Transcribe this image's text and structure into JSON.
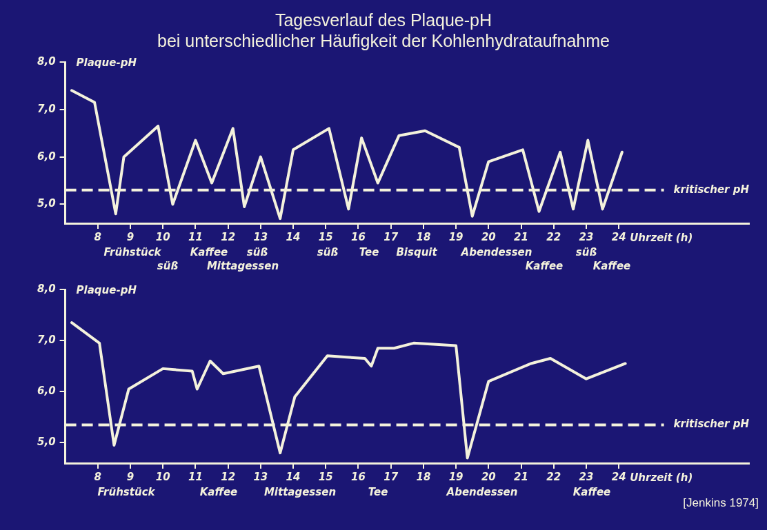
{
  "chart_data": [
    {
      "type": "line",
      "title": "Tagesverlauf des Plaque-pH",
      "subtitle": "bei unterschiedlicher Häufigkeit der Kohlenhydrataufnahme",
      "ylabel": "Plaque-pH",
      "xlabel": "Uhrzeit (h)",
      "x": [
        7.2,
        7.9,
        8.55,
        8.8,
        9.85,
        10.3,
        11.0,
        11.5,
        12.15,
        12.5,
        13.0,
        13.6,
        14.0,
        15.1,
        15.7,
        16.1,
        16.6,
        17.25,
        18.05,
        19.1,
        19.5,
        20.0,
        21.05,
        21.55,
        22.2,
        22.6,
        23.05,
        23.5,
        24.1
      ],
      "series": [
        {
          "color": "#f4f2dc",
          "values": [
            7.4,
            7.15,
            4.8,
            6.0,
            6.65,
            5.0,
            6.35,
            5.45,
            6.6,
            4.95,
            6.0,
            4.7,
            6.15,
            6.6,
            4.9,
            6.4,
            5.45,
            6.45,
            6.55,
            6.2,
            4.75,
            5.9,
            6.15,
            4.85,
            6.1,
            4.9,
            6.35,
            4.9,
            6.1
          ]
        }
      ],
      "xlim": [
        7,
        28
      ],
      "ylim": [
        4.6,
        8.0
      ],
      "xticks": [
        8,
        9,
        10,
        11,
        12,
        13,
        14,
        15,
        16,
        17,
        18,
        19,
        20,
        21,
        22,
        23,
        24
      ],
      "yticks": [
        {
          "value": 5,
          "label": "5,0"
        },
        {
          "value": 6,
          "label": "6,0"
        },
        {
          "value": 7,
          "label": "7,0"
        },
        {
          "value": 8,
          "label": "8,0"
        }
      ],
      "ref_lines": [
        {
          "axis": "y",
          "value": 5.3,
          "label": "kritischer pH",
          "color": "#f4f2dc",
          "line_style": "dashed"
        }
      ],
      "annotations": [
        "Frühstück",
        "süß",
        "Kaffee",
        "Mittagessen",
        "süß",
        "süß",
        "Tee",
        "Bisquit",
        "Abendessen",
        "Kaffee",
        "süß",
        "Kaffee"
      ]
    },
    {
      "type": "line",
      "ylabel": "Plaque-pH",
      "xlabel": "Uhrzeit (h)",
      "x": [
        7.2,
        8.05,
        8.5,
        8.95,
        10.0,
        10.9,
        11.05,
        11.45,
        11.85,
        12.95,
        13.6,
        14.05,
        15.05,
        16.2,
        16.4,
        16.6,
        17.1,
        17.7,
        19.0,
        19.35,
        20.0,
        21.3,
        21.9,
        23.0,
        24.2
      ],
      "series": [
        {
          "color": "#f4f2dc",
          "values": [
            7.35,
            6.95,
            4.95,
            6.05,
            6.45,
            6.4,
            6.05,
            6.6,
            6.35,
            6.5,
            4.8,
            5.9,
            6.7,
            6.65,
            6.5,
            6.85,
            6.85,
            6.95,
            6.9,
            4.7,
            6.2,
            6.55,
            6.65,
            6.25,
            6.55
          ]
        }
      ],
      "xlim": [
        7,
        28
      ],
      "ylim": [
        4.6,
        8.0
      ],
      "xticks": [
        8,
        9,
        10,
        11,
        12,
        13,
        14,
        15,
        16,
        17,
        18,
        19,
        20,
        21,
        22,
        23,
        24
      ],
      "yticks": [
        {
          "value": 5,
          "label": "5,0"
        },
        {
          "value": 6,
          "label": "6,0"
        },
        {
          "value": 7,
          "label": "7,0"
        },
        {
          "value": 8,
          "label": "8,0"
        }
      ],
      "ref_lines": [
        {
          "axis": "y",
          "value": 5.35,
          "label": "kritischer pH",
          "color": "#f4f2dc",
          "line_style": "dashed"
        }
      ],
      "annotations": [
        "Frühstück",
        "Kaffee",
        "Mittagessen",
        "Tee",
        "Abendessen",
        "Kaffee",
        "[Jenkins 1974]"
      ]
    }
  ]
}
